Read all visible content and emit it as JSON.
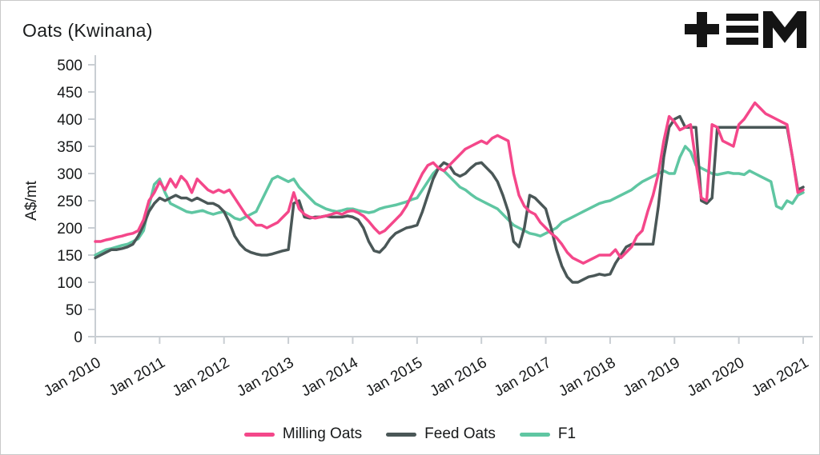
{
  "title": "Oats (Kwinana)",
  "logo": {
    "name": "tem-logo"
  },
  "legend": {
    "position": "bottom"
  },
  "chart_data": {
    "type": "line",
    "title": "Oats (Kwinana)",
    "xlabel": "",
    "ylabel": "A$/mt",
    "ylim": [
      0,
      500
    ],
    "yticks": [
      0,
      50,
      100,
      150,
      200,
      250,
      300,
      350,
      400,
      450,
      500
    ],
    "x_tick_labels": [
      "Jan 2010",
      "Jan 2011",
      "Jan 2012",
      "Jan 2013",
      "Jan 2014",
      "Jan 2015",
      "Jan 2016",
      "Jan 2017",
      "Jan 2018",
      "Jan 2019",
      "Jan 2020",
      "Jan 2021"
    ],
    "x_months_per_tick": 12,
    "n_points": 133,
    "grid": false,
    "legend_position": "bottom",
    "series": [
      {
        "name": "Milling Oats",
        "color": "#f4478a",
        "values": [
          175,
          175,
          178,
          180,
          183,
          185,
          188,
          190,
          195,
          215,
          250,
          265,
          285,
          270,
          290,
          275,
          295,
          285,
          265,
          290,
          280,
          270,
          265,
          270,
          265,
          270,
          255,
          240,
          225,
          215,
          205,
          205,
          200,
          205,
          210,
          220,
          230,
          265,
          235,
          225,
          220,
          218,
          220,
          222,
          225,
          228,
          225,
          230,
          232,
          228,
          222,
          212,
          200,
          190,
          195,
          205,
          215,
          225,
          240,
          260,
          280,
          300,
          315,
          320,
          310,
          305,
          315,
          325,
          335,
          345,
          350,
          355,
          360,
          355,
          365,
          370,
          365,
          360,
          300,
          260,
          240,
          230,
          225,
          210,
          200,
          190,
          182,
          170,
          155,
          145,
          140,
          135,
          140,
          145,
          150,
          150,
          150,
          160,
          145,
          155,
          165,
          185,
          195,
          230,
          260,
          300,
          360,
          405,
          395,
          380,
          385,
          390,
          320,
          255,
          250,
          390,
          385,
          360,
          355,
          350,
          390,
          400,
          415,
          430,
          420,
          410,
          405,
          400,
          395,
          390,
          330,
          265,
          270
        ]
      },
      {
        "name": "Feed Oats",
        "color": "#4a5757",
        "values": [
          145,
          150,
          155,
          160,
          160,
          162,
          165,
          170,
          185,
          205,
          230,
          245,
          255,
          250,
          255,
          260,
          255,
          255,
          250,
          255,
          250,
          245,
          245,
          240,
          230,
          210,
          185,
          170,
          160,
          155,
          152,
          150,
          150,
          152,
          155,
          158,
          160,
          245,
          250,
          220,
          218,
          220,
          220,
          222,
          220,
          220,
          220,
          222,
          220,
          215,
          200,
          175,
          158,
          155,
          165,
          180,
          190,
          195,
          200,
          202,
          205,
          230,
          260,
          290,
          310,
          320,
          315,
          300,
          295,
          300,
          310,
          318,
          320,
          310,
          300,
          285,
          260,
          230,
          175,
          165,
          200,
          260,
          255,
          245,
          235,
          200,
          160,
          130,
          110,
          100,
          100,
          105,
          110,
          112,
          115,
          113,
          115,
          135,
          150,
          165,
          170,
          170,
          170,
          170,
          170,
          240,
          330,
          385,
          400,
          405,
          385,
          385,
          385,
          250,
          245,
          255,
          385,
          385,
          385,
          385,
          385,
          385,
          385,
          385,
          385,
          385,
          385,
          385,
          385,
          385,
          330,
          270,
          275
        ]
      },
      {
        "name": "F1",
        "color": "#5fc6a2",
        "values": [
          150,
          155,
          160,
          162,
          165,
          168,
          170,
          175,
          180,
          195,
          240,
          280,
          290,
          265,
          245,
          240,
          235,
          230,
          228,
          230,
          232,
          228,
          225,
          228,
          230,
          225,
          218,
          215,
          220,
          225,
          230,
          250,
          270,
          290,
          295,
          290,
          285,
          290,
          275,
          265,
          255,
          245,
          240,
          235,
          232,
          230,
          232,
          235,
          235,
          232,
          230,
          228,
          230,
          235,
          238,
          240,
          242,
          245,
          248,
          252,
          255,
          270,
          285,
          300,
          310,
          305,
          295,
          285,
          275,
          270,
          262,
          255,
          250,
          245,
          240,
          235,
          225,
          215,
          205,
          200,
          195,
          190,
          188,
          185,
          190,
          195,
          200,
          210,
          215,
          220,
          225,
          230,
          235,
          240,
          245,
          248,
          250,
          255,
          260,
          265,
          270,
          278,
          285,
          290,
          295,
          300,
          305,
          300,
          300,
          330,
          350,
          340,
          315,
          310,
          305,
          300,
          298,
          300,
          302,
          300,
          300,
          298,
          305,
          300,
          295,
          290,
          285,
          240,
          235,
          250,
          245,
          260,
          265
        ]
      }
    ]
  }
}
